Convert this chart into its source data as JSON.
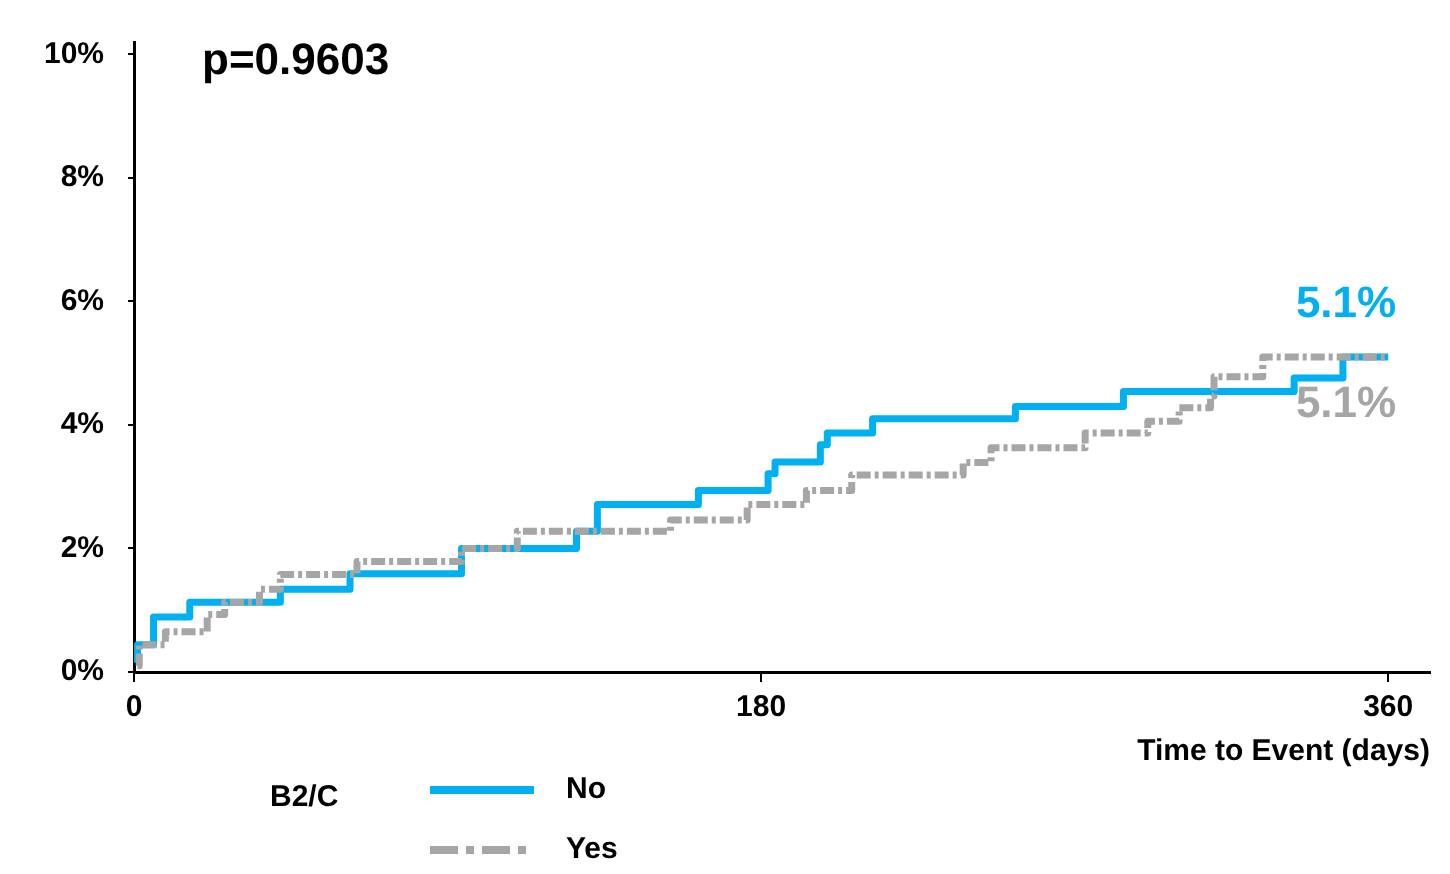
{
  "chart_data": {
    "type": "step",
    "xlabel": "Time to Event (days)",
    "legend_title": "B2/C",
    "legend": "bottom left",
    "grid": false,
    "marker": "none",
    "xlim": [
      0,
      372
    ],
    "xticks": [
      0,
      180,
      360
    ],
    "ylim": [
      0,
      10.2
    ],
    "yticks": [
      {
        "value": 0,
        "label": "0%"
      },
      {
        "value": 2,
        "label": "2%"
      },
      {
        "value": 4,
        "label": "4%"
      },
      {
        "value": 6,
        "label": "6%"
      },
      {
        "value": 8,
        "label": "8%"
      },
      {
        "value": 10,
        "label": "10%"
      }
    ],
    "annotations": [
      "p=0.9603"
    ],
    "series": [
      {
        "name": "No",
        "color": "#00b0f0",
        "line_style": "solid",
        "x": [
          1,
          1,
          5.6,
          16,
          42,
          62,
          94,
          127,
          133,
          162,
          182,
          184,
          197,
          199,
          212,
          253,
          284,
          333,
          347,
          360
        ],
        "values": [
          0.15,
          0.44,
          0.89,
          1.13,
          1.34,
          1.59,
          2.0,
          2.28,
          2.71,
          2.94,
          3.21,
          3.4,
          3.68,
          3.87,
          4.1,
          4.3,
          4.54,
          4.76,
          5.1,
          5.1
        ],
        "value_labels": [
          null,
          null,
          null,
          null,
          null,
          null,
          null,
          null,
          null,
          null,
          null,
          null,
          null,
          null,
          null,
          null,
          null,
          null,
          null,
          "5.1%"
        ]
      },
      {
        "name": "Yes",
        "color": "#a6a6a6",
        "line_style": "dashed",
        "x": [
          1,
          1.5,
          9,
          21,
          26,
          36,
          42,
          64,
          94,
          110,
          154,
          176,
          193,
          206,
          238,
          246,
          273,
          291,
          300,
          309,
          310,
          324,
          360
        ],
        "values": [
          0.1,
          0.44,
          0.65,
          0.93,
          1.13,
          1.34,
          1.58,
          1.79,
          2.0,
          2.28,
          2.46,
          2.71,
          2.94,
          3.19,
          3.39,
          3.63,
          3.87,
          4.06,
          4.28,
          4.47,
          4.78,
          5.1,
          5.1
        ],
        "value_labels": [
          null,
          null,
          null,
          null,
          null,
          null,
          null,
          null,
          null,
          null,
          null,
          null,
          null,
          null,
          null,
          null,
          null,
          null,
          null,
          null,
          null,
          null,
          "5.1%"
        ]
      }
    ]
  }
}
